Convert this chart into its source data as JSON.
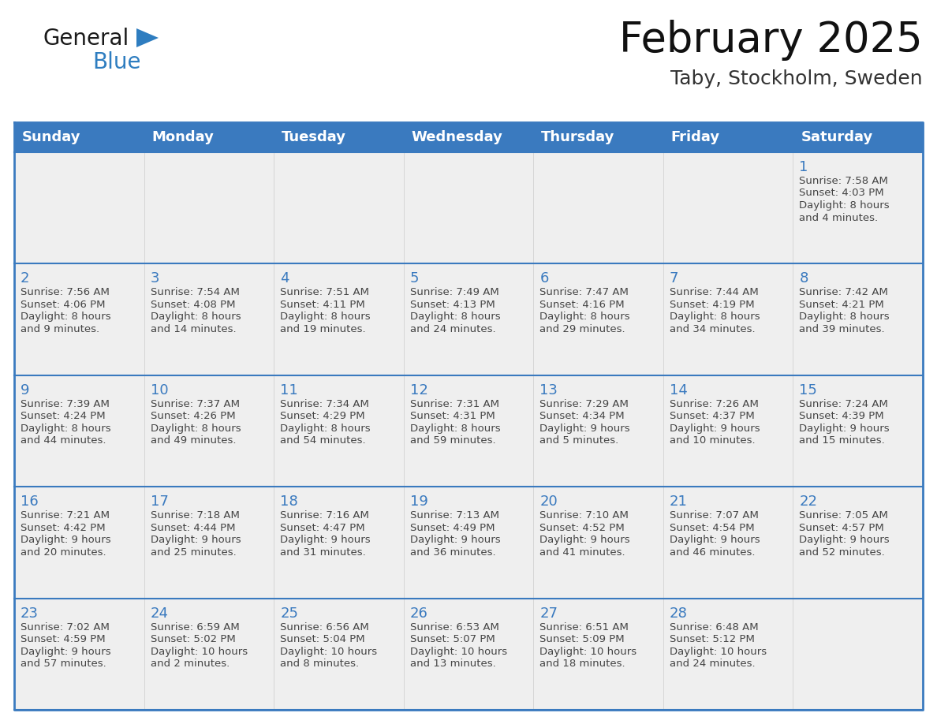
{
  "title": "February 2025",
  "subtitle": "Taby, Stockholm, Sweden",
  "header_color": "#3a7abf",
  "header_text_color": "#ffffff",
  "cell_bg_color": "#efefef",
  "border_color": "#3a7abf",
  "day_number_color": "#3a7abf",
  "cell_text_color": "#444444",
  "days_of_week": [
    "Sunday",
    "Monday",
    "Tuesday",
    "Wednesday",
    "Thursday",
    "Friday",
    "Saturday"
  ],
  "calendar_data": [
    [
      null,
      null,
      null,
      null,
      null,
      null,
      {
        "day": 1,
        "sunrise": "7:58 AM",
        "sunset": "4:03 PM",
        "daylight": "8 hours",
        "daylight2": "and 4 minutes."
      }
    ],
    [
      {
        "day": 2,
        "sunrise": "7:56 AM",
        "sunset": "4:06 PM",
        "daylight": "8 hours",
        "daylight2": "and 9 minutes."
      },
      {
        "day": 3,
        "sunrise": "7:54 AM",
        "sunset": "4:08 PM",
        "daylight": "8 hours",
        "daylight2": "and 14 minutes."
      },
      {
        "day": 4,
        "sunrise": "7:51 AM",
        "sunset": "4:11 PM",
        "daylight": "8 hours",
        "daylight2": "and 19 minutes."
      },
      {
        "day": 5,
        "sunrise": "7:49 AM",
        "sunset": "4:13 PM",
        "daylight": "8 hours",
        "daylight2": "and 24 minutes."
      },
      {
        "day": 6,
        "sunrise": "7:47 AM",
        "sunset": "4:16 PM",
        "daylight": "8 hours",
        "daylight2": "and 29 minutes."
      },
      {
        "day": 7,
        "sunrise": "7:44 AM",
        "sunset": "4:19 PM",
        "daylight": "8 hours",
        "daylight2": "and 34 minutes."
      },
      {
        "day": 8,
        "sunrise": "7:42 AM",
        "sunset": "4:21 PM",
        "daylight": "8 hours",
        "daylight2": "and 39 minutes."
      }
    ],
    [
      {
        "day": 9,
        "sunrise": "7:39 AM",
        "sunset": "4:24 PM",
        "daylight": "8 hours",
        "daylight2": "and 44 minutes."
      },
      {
        "day": 10,
        "sunrise": "7:37 AM",
        "sunset": "4:26 PM",
        "daylight": "8 hours",
        "daylight2": "and 49 minutes."
      },
      {
        "day": 11,
        "sunrise": "7:34 AM",
        "sunset": "4:29 PM",
        "daylight": "8 hours",
        "daylight2": "and 54 minutes."
      },
      {
        "day": 12,
        "sunrise": "7:31 AM",
        "sunset": "4:31 PM",
        "daylight": "8 hours",
        "daylight2": "and 59 minutes."
      },
      {
        "day": 13,
        "sunrise": "7:29 AM",
        "sunset": "4:34 PM",
        "daylight": "9 hours",
        "daylight2": "and 5 minutes."
      },
      {
        "day": 14,
        "sunrise": "7:26 AM",
        "sunset": "4:37 PM",
        "daylight": "9 hours",
        "daylight2": "and 10 minutes."
      },
      {
        "day": 15,
        "sunrise": "7:24 AM",
        "sunset": "4:39 PM",
        "daylight": "9 hours",
        "daylight2": "and 15 minutes."
      }
    ],
    [
      {
        "day": 16,
        "sunrise": "7:21 AM",
        "sunset": "4:42 PM",
        "daylight": "9 hours",
        "daylight2": "and 20 minutes."
      },
      {
        "day": 17,
        "sunrise": "7:18 AM",
        "sunset": "4:44 PM",
        "daylight": "9 hours",
        "daylight2": "and 25 minutes."
      },
      {
        "day": 18,
        "sunrise": "7:16 AM",
        "sunset": "4:47 PM",
        "daylight": "9 hours",
        "daylight2": "and 31 minutes."
      },
      {
        "day": 19,
        "sunrise": "7:13 AM",
        "sunset": "4:49 PM",
        "daylight": "9 hours",
        "daylight2": "and 36 minutes."
      },
      {
        "day": 20,
        "sunrise": "7:10 AM",
        "sunset": "4:52 PM",
        "daylight": "9 hours",
        "daylight2": "and 41 minutes."
      },
      {
        "day": 21,
        "sunrise": "7:07 AM",
        "sunset": "4:54 PM",
        "daylight": "9 hours",
        "daylight2": "and 46 minutes."
      },
      {
        "day": 22,
        "sunrise": "7:05 AM",
        "sunset": "4:57 PM",
        "daylight": "9 hours",
        "daylight2": "and 52 minutes."
      }
    ],
    [
      {
        "day": 23,
        "sunrise": "7:02 AM",
        "sunset": "4:59 PM",
        "daylight": "9 hours",
        "daylight2": "and 57 minutes."
      },
      {
        "day": 24,
        "sunrise": "6:59 AM",
        "sunset": "5:02 PM",
        "daylight": "10 hours",
        "daylight2": "and 2 minutes."
      },
      {
        "day": 25,
        "sunrise": "6:56 AM",
        "sunset": "5:04 PM",
        "daylight": "10 hours",
        "daylight2": "and 8 minutes."
      },
      {
        "day": 26,
        "sunrise": "6:53 AM",
        "sunset": "5:07 PM",
        "daylight": "10 hours",
        "daylight2": "and 13 minutes."
      },
      {
        "day": 27,
        "sunrise": "6:51 AM",
        "sunset": "5:09 PM",
        "daylight": "10 hours",
        "daylight2": "and 18 minutes."
      },
      {
        "day": 28,
        "sunrise": "6:48 AM",
        "sunset": "5:12 PM",
        "daylight": "10 hours",
        "daylight2": "and 24 minutes."
      },
      null
    ]
  ],
  "num_rows": 5,
  "num_cols": 7,
  "logo_general_color": "#1a1a1a",
  "logo_blue_color": "#2e7dc0",
  "logo_triangle_color": "#2e7dc0"
}
